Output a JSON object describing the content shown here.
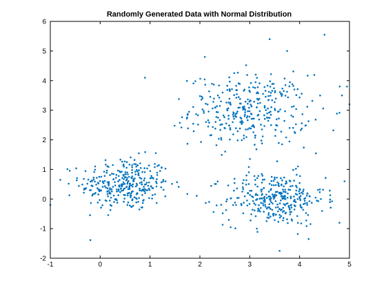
{
  "chart_data": {
    "type": "scatter",
    "title": "Randomly Generated Data with Normal Distribution",
    "xlabel": "",
    "ylabel": "",
    "xlim": [
      -1,
      5
    ],
    "ylim": [
      -2,
      6
    ],
    "xticks": [
      -1,
      0,
      1,
      2,
      3,
      4,
      5
    ],
    "yticks": [
      -2,
      -1,
      0,
      1,
      2,
      3,
      4,
      5,
      6
    ],
    "grid": false,
    "legend": "none",
    "marker_color": "#0072BD",
    "clusters": [
      {
        "center_x": 0.5,
        "center_y": 0.5,
        "spread_x": 0.45,
        "spread_y": 0.45,
        "count": 330
      },
      {
        "center_x": 3.0,
        "center_y": 3.0,
        "spread_x": 0.6,
        "spread_y": 0.6,
        "count": 340
      },
      {
        "center_x": 3.5,
        "center_y": 0.0,
        "spread_x": 0.5,
        "spread_y": 0.45,
        "count": 330
      }
    ],
    "outliers": [
      {
        "x": 4.5,
        "y": 5.55
      },
      {
        "x": 3.4,
        "y": 5.4
      },
      {
        "x": 2.1,
        "y": 4.8
      },
      {
        "x": 3.75,
        "y": 5.0
      },
      {
        "x": 4.95,
        "y": 3.8
      },
      {
        "x": 4.85,
        "y": 3.5
      },
      {
        "x": 5.0,
        "y": 3.2
      },
      {
        "x": -1.0,
        "y": -0.2
      },
      {
        "x": -0.8,
        "y": 0.65
      },
      {
        "x": 0.9,
        "y": 4.1
      },
      {
        "x": 3.6,
        "y": -1.75
      },
      {
        "x": 4.8,
        "y": -0.8
      },
      {
        "x": 4.9,
        "y": 0.6
      }
    ]
  }
}
